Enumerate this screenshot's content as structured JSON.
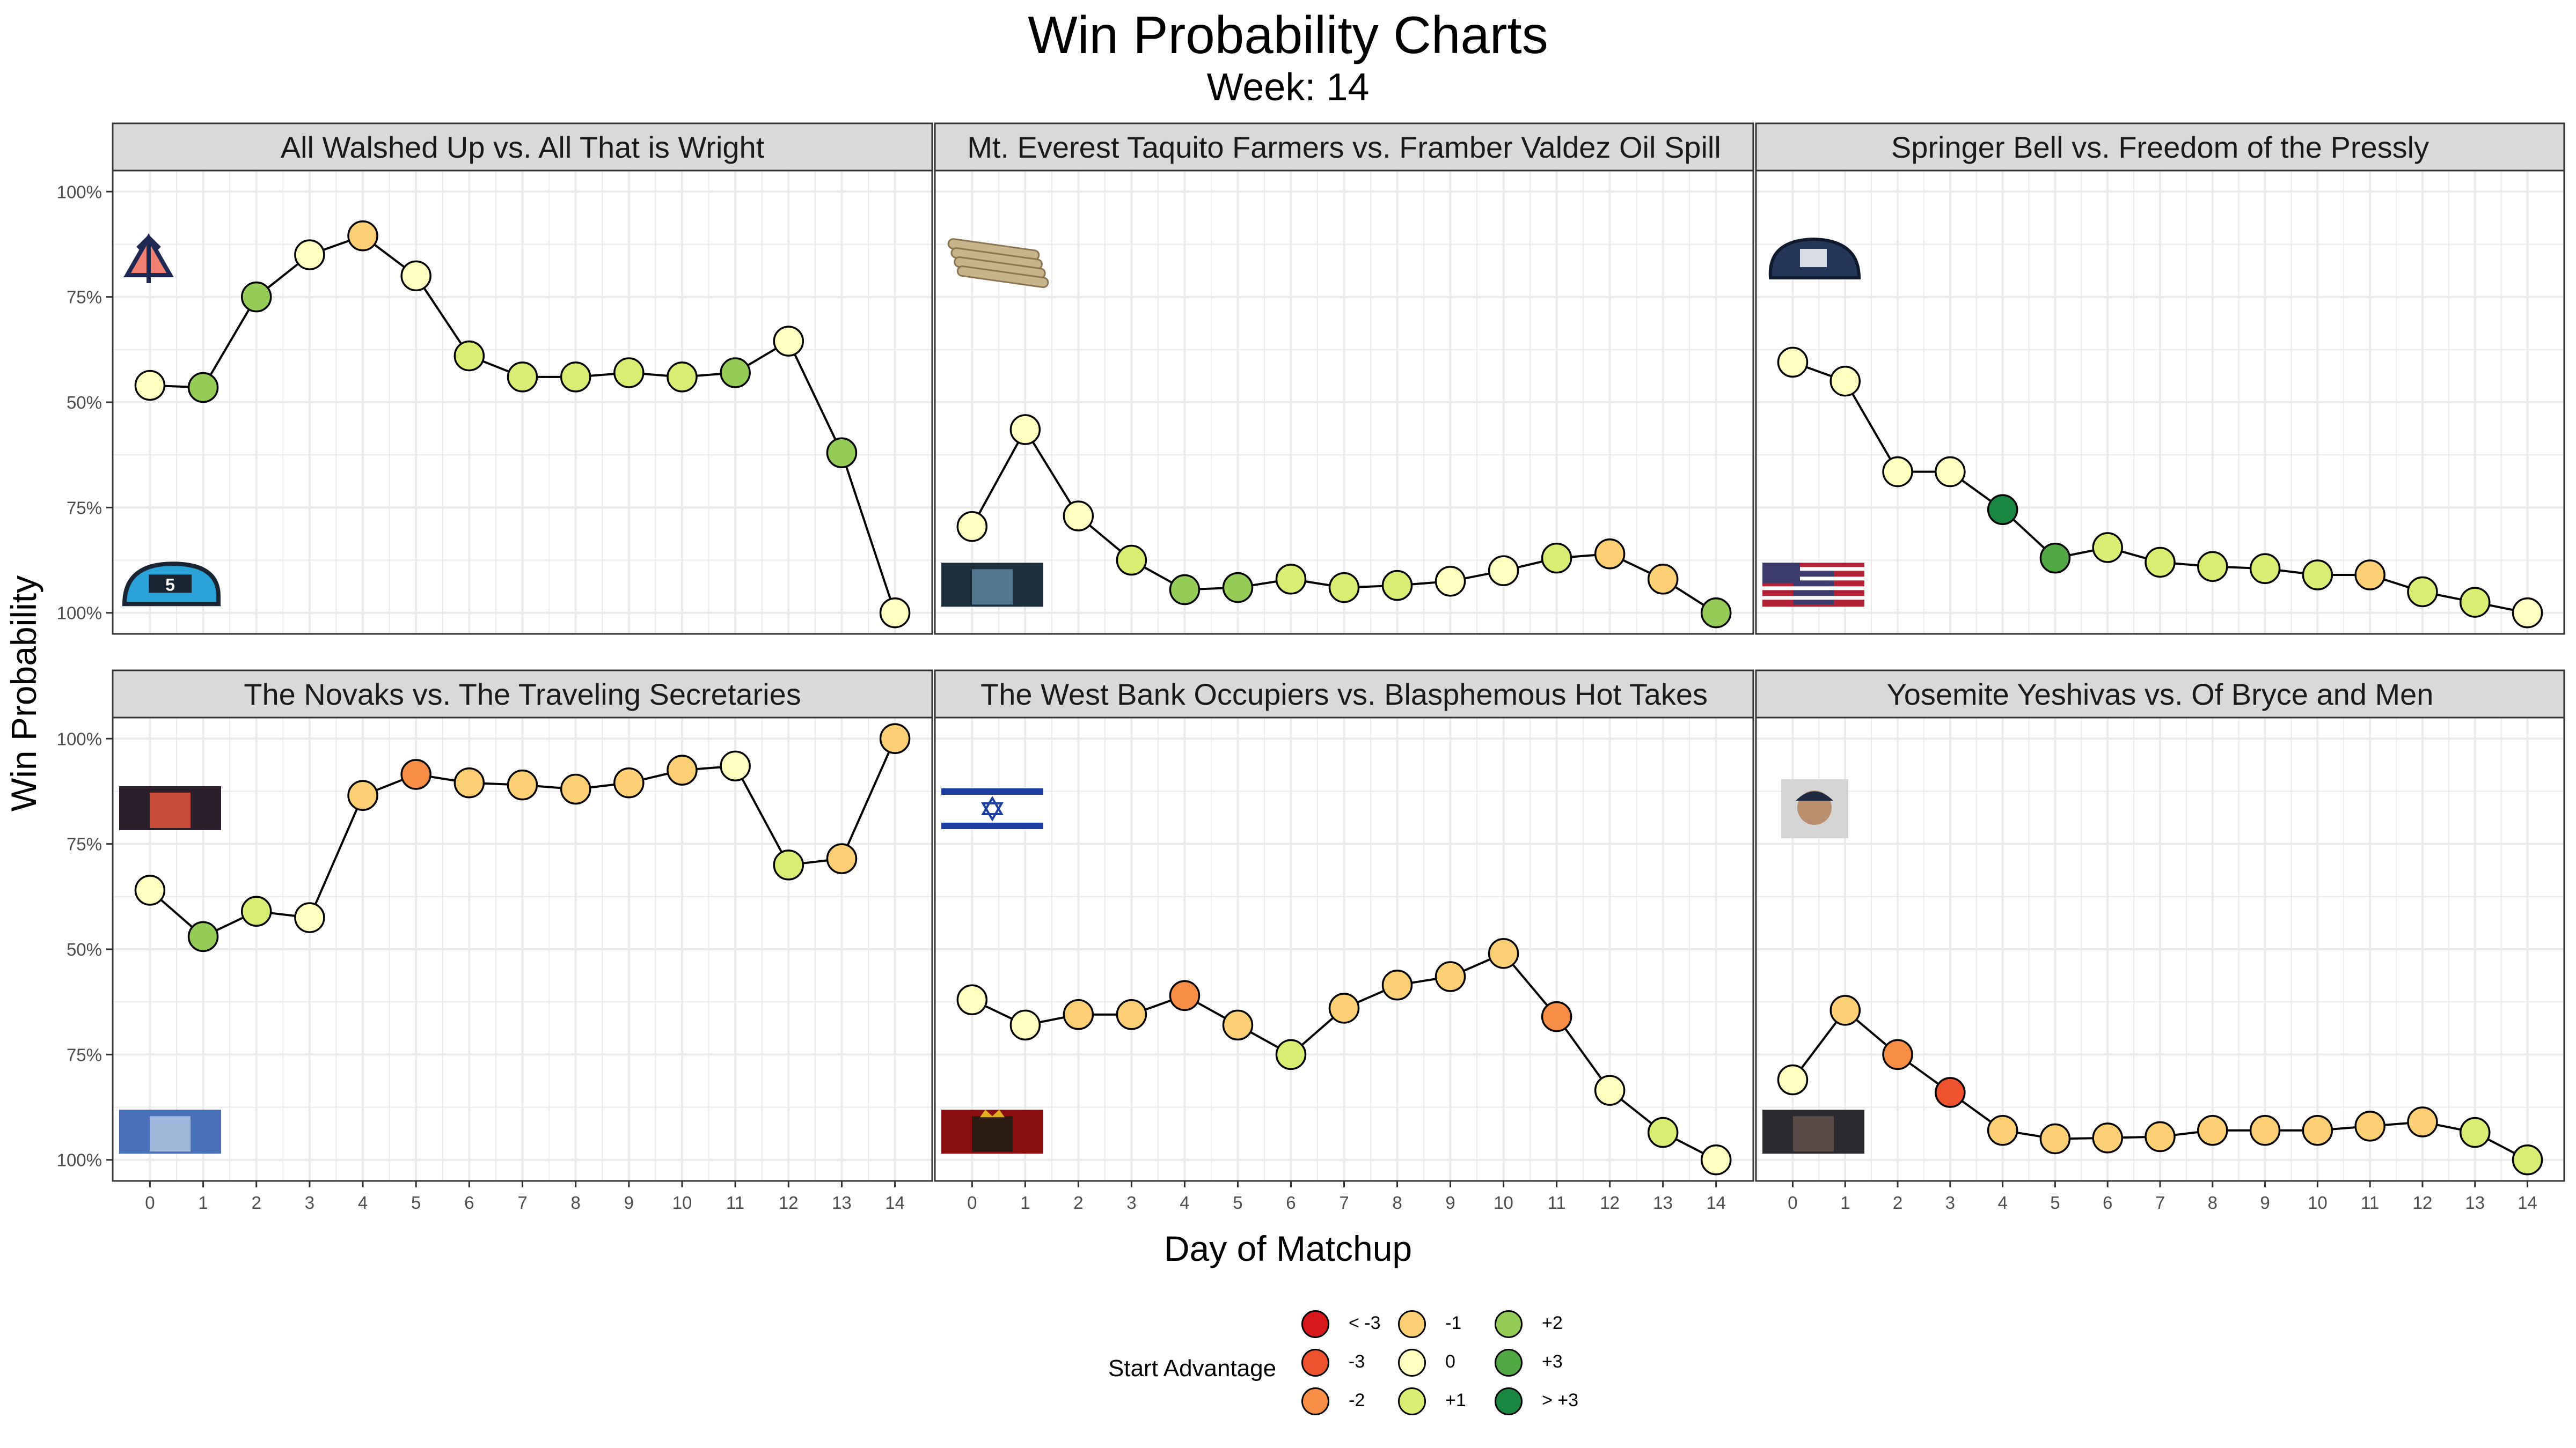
{
  "title": "Win Probability Charts",
  "subtitle": "Week: 14",
  "ylabel": "Win Probability",
  "xlabel": "Day of Matchup",
  "colors": {
    "strip_bg": "#d9d9d9",
    "grid": "#ebebeb",
    "panel_border": "#333333",
    "advantage": {
      "< -3": "#d7191c",
      "-3": "#f0522f",
      "-2": "#f88d45",
      "-1": "#fdcf75",
      "0": "#ffffbf",
      "+1": "#d7ee73",
      "+2": "#93cc56",
      "+3": "#52a845",
      "> +3": "#1a8840"
    }
  },
  "legend": {
    "title": "Start Advantage",
    "items": [
      "< -3",
      "-3",
      "-2",
      "-1",
      "0",
      "+1",
      "+2",
      "+3",
      "> +3"
    ]
  },
  "chart_data": [
    {
      "type": "line",
      "title": "All Walshed Up vs. All That is Wright",
      "x": [
        0,
        1,
        2,
        3,
        4,
        5,
        6,
        7,
        8,
        9,
        10,
        11,
        12,
        13,
        14
      ],
      "y": [
        0.54,
        0.535,
        0.75,
        0.85,
        0.895,
        0.8,
        0.61,
        0.56,
        0.56,
        0.57,
        0.56,
        0.57,
        0.645,
        0.38,
        0.0
      ],
      "advantage": [
        "0",
        "+2",
        "+2",
        "0",
        "-1",
        "0",
        "+1",
        "+1",
        "+1",
        "+1",
        "+1",
        "+2",
        "0",
        "+2",
        "0"
      ],
      "logos": [
        "trident-logo-icon",
        "helmet-5-logo-icon"
      ]
    },
    {
      "type": "line",
      "title": "Mt. Everest Taquito Farmers vs. Framber Valdez Oil Spill",
      "x": [
        0,
        1,
        2,
        3,
        4,
        5,
        6,
        7,
        8,
        9,
        10,
        11,
        12,
        13,
        14
      ],
      "y": [
        0.205,
        0.435,
        0.23,
        0.125,
        0.055,
        0.06,
        0.08,
        0.06,
        0.065,
        0.075,
        0.1,
        0.13,
        0.14,
        0.08,
        0.0
      ],
      "advantage": [
        "0",
        "0",
        "0",
        "+1",
        "+2",
        "+2",
        "+1",
        "+1",
        "+1",
        "0",
        "0",
        "+1",
        "-1",
        "-1",
        "+2"
      ],
      "logos": [
        "taquitos-logo-icon",
        "oil-spill-logo-icon"
      ]
    },
    {
      "type": "line",
      "title": "Springer Bell vs. Freedom of the Pressly",
      "x": [
        0,
        1,
        2,
        3,
        4,
        5,
        6,
        7,
        8,
        9,
        10,
        11,
        12,
        13,
        14
      ],
      "y": [
        0.595,
        0.55,
        0.335,
        0.335,
        0.245,
        0.13,
        0.155,
        0.12,
        0.11,
        0.105,
        0.09,
        0.09,
        0.05,
        0.025,
        0.0
      ],
      "advantage": [
        "0",
        "0",
        "0",
        "0",
        "> +3",
        "+3",
        "+1",
        "+1",
        "+1",
        "+1",
        "+1",
        "-1",
        "+1",
        "+1",
        "0"
      ],
      "logos": [
        "cap-logo-icon",
        "flag-logo-icon"
      ]
    },
    {
      "type": "line",
      "title": "The Novaks vs. The Traveling Secretaries",
      "x": [
        0,
        1,
        2,
        3,
        4,
        5,
        6,
        7,
        8,
        9,
        10,
        11,
        12,
        13,
        14
      ],
      "y": [
        0.64,
        0.53,
        0.59,
        0.575,
        0.865,
        0.915,
        0.895,
        0.89,
        0.88,
        0.895,
        0.925,
        0.935,
        0.7,
        0.715,
        1.0
      ],
      "advantage": [
        "0",
        "+2",
        "+1",
        "0",
        "-1",
        "-2",
        "-1",
        "-1",
        "-1",
        "-1",
        "-1",
        "0",
        "+1",
        "-1",
        "-1"
      ],
      "logos": [
        "basketball-photo-icon",
        "man-swing-photo-icon"
      ]
    },
    {
      "type": "line",
      "title": "The West Bank Occupiers vs. Blasphemous Hot Takes",
      "x": [
        0,
        1,
        2,
        3,
        4,
        5,
        6,
        7,
        8,
        9,
        10,
        11,
        12,
        13,
        14
      ],
      "y": [
        0.38,
        0.32,
        0.345,
        0.345,
        0.39,
        0.32,
        0.25,
        0.36,
        0.415,
        0.435,
        0.49,
        0.34,
        0.165,
        0.065,
        0.0
      ],
      "advantage": [
        "0",
        "0",
        "-1",
        "-1",
        "-2",
        "-1",
        "+1",
        "-1",
        "-1",
        "-1",
        "-1",
        "-2",
        "0",
        "+1",
        "0"
      ],
      "logos": [
        "israel-flag-icon",
        "crowned-man-photo-icon"
      ]
    },
    {
      "type": "line",
      "title": "Yosemite Yeshivas vs. Of Bryce and Men",
      "x": [
        0,
        1,
        2,
        3,
        4,
        5,
        6,
        7,
        8,
        9,
        10,
        11,
        12,
        13,
        14
      ],
      "y": [
        0.19,
        0.355,
        0.25,
        0.16,
        0.07,
        0.05,
        0.052,
        0.055,
        0.07,
        0.07,
        0.07,
        0.08,
        0.09,
        0.065,
        0.0
      ],
      "advantage": [
        "0",
        "-1",
        "-2",
        "-3",
        "-1",
        "-1",
        "-1",
        "-1",
        "-1",
        "-1",
        "-1",
        "-1",
        "-1",
        "+1",
        "+1"
      ],
      "logos": [
        "player-photo-icon",
        "camera-photo-icon"
      ]
    }
  ],
  "ytick_labels": [
    "100%",
    "75%",
    "50%",
    "75%",
    "100%"
  ]
}
